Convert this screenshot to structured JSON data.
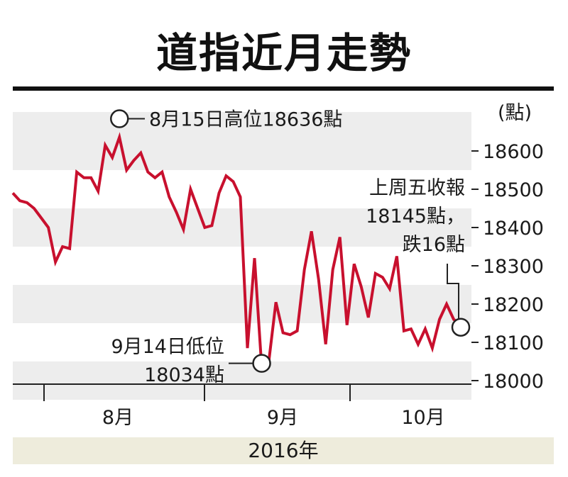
{
  "title": "道指近月走勢",
  "chart_data": {
    "type": "line",
    "ylabel": "(點)",
    "ylim": [
      17980,
      18690
    ],
    "yticks": [
      18000,
      18100,
      18200,
      18300,
      18400,
      18500,
      18600
    ],
    "month_labels": [
      "8月",
      "9月",
      "10月"
    ],
    "year_label": "2016年",
    "series": [
      {
        "color": "#c8102e",
        "values": [
          18490,
          18470,
          18465,
          18450,
          18425,
          18400,
          18310,
          18350,
          18345,
          18545,
          18530,
          18530,
          18495,
          18615,
          18583,
          18636,
          18550,
          18575,
          18595,
          18545,
          18530,
          18545,
          18480,
          18440,
          18395,
          18500,
          18450,
          18400,
          18405,
          18490,
          18535,
          18520,
          18480,
          18085,
          18320,
          18034,
          18050,
          18205,
          18125,
          18120,
          18130,
          18290,
          18390,
          18265,
          18095,
          18290,
          18375,
          18145,
          18305,
          18245,
          18165,
          18280,
          18270,
          18240,
          18325,
          18130,
          18135,
          18095,
          18135,
          18085,
          18160,
          18200,
          18160,
          18145
        ]
      }
    ],
    "annotations": {
      "high": {
        "lines": [
          "8月15日高位18636點"
        ],
        "value": 18636
      },
      "low": {
        "lines": [
          "9月14日低位",
          "18034點"
        ],
        "value": 18034
      },
      "last": {
        "lines": [
          "上周五收報",
          "18145點，",
          "跌16點"
        ],
        "value": 18145,
        "change": -16
      }
    }
  }
}
